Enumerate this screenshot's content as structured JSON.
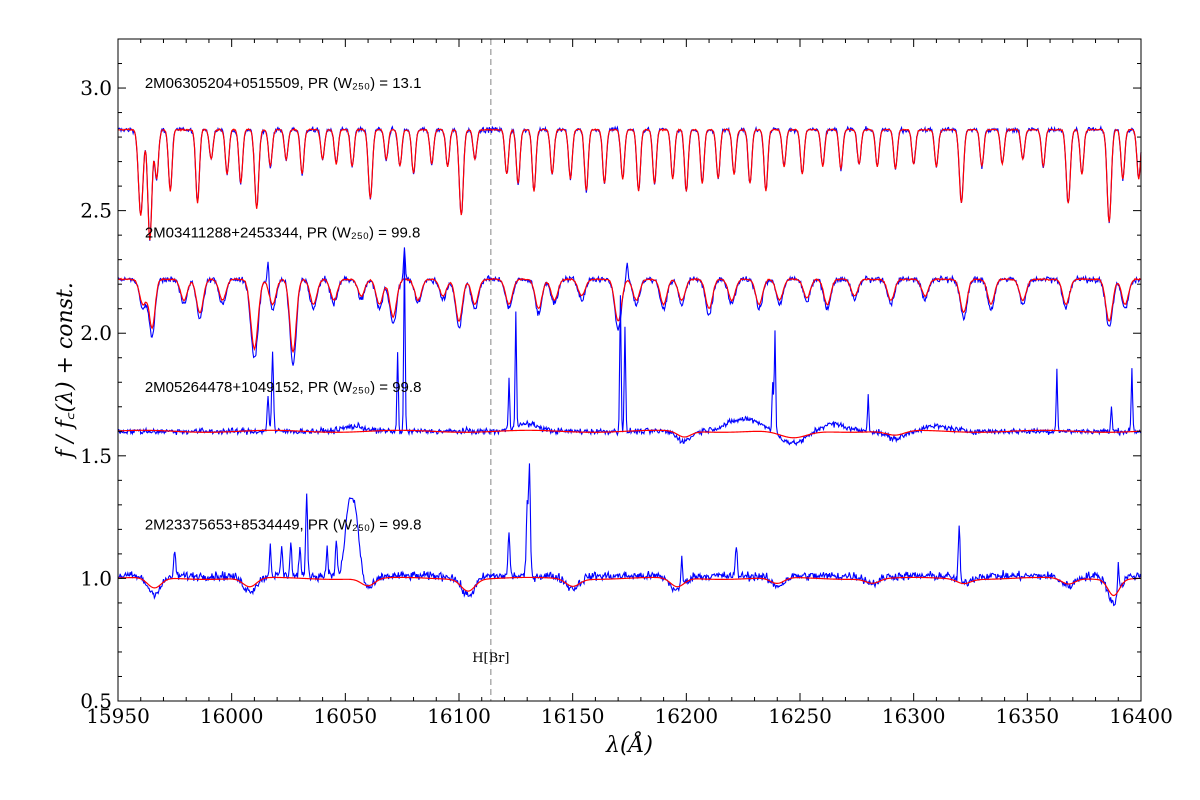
{
  "chart_data": {
    "type": "line",
    "xlabel": "λ(Å)",
    "ylabel": "f / f꜀(λ) + const.",
    "xlim": [
      15950,
      16400
    ],
    "ylim": [
      0.5,
      3.2
    ],
    "xticks": [
      15950,
      16000,
      16050,
      16100,
      16150,
      16200,
      16250,
      16300,
      16350,
      16400
    ],
    "yticks": [
      0.5,
      1.0,
      1.5,
      2.0,
      2.5,
      3.0
    ],
    "xtick_labels": [
      "15950",
      "16000",
      "16050",
      "16100",
      "16150",
      "16200",
      "16250",
      "16300",
      "16350",
      "16400"
    ],
    "ytick_labels": [
      "0.5",
      "1.0",
      "1.5",
      "2.0",
      "2.5",
      "3.0"
    ],
    "grid": false,
    "colors": {
      "data": "#0000ff",
      "model": "#ff0000",
      "reference_line": "#999999"
    },
    "reference_line": {
      "x": 16114,
      "label": "H[Br]",
      "label_y": 0.68
    },
    "spectra": [
      {
        "label": "2M06305204+0515509, PR (W₂₅₀) = 13.1",
        "label_position": {
          "x": 15953,
          "y": 3.02
        },
        "continuum": 2.83,
        "model_continuum": 2.83,
        "data_noise": 0.01,
        "model_smooth": false,
        "absorption_lines": [
          [
            15960,
            0.35,
            1.0
          ],
          [
            15964,
            0.45,
            0.9
          ],
          [
            15967,
            0.2,
            0.8
          ],
          [
            15973,
            0.25,
            0.8
          ],
          [
            15985,
            0.3,
            0.8
          ],
          [
            15991,
            0.12,
            0.8
          ],
          [
            15998,
            0.18,
            0.8
          ],
          [
            16004,
            0.22,
            0.8
          ],
          [
            16011,
            0.32,
            0.9
          ],
          [
            16017,
            0.15,
            0.8
          ],
          [
            16024,
            0.12,
            0.8
          ],
          [
            16031,
            0.18,
            0.8
          ],
          [
            16040,
            0.12,
            0.8
          ],
          [
            16046,
            0.14,
            0.8
          ],
          [
            16053,
            0.15,
            0.8
          ],
          [
            16061,
            0.28,
            0.9
          ],
          [
            16068,
            0.12,
            0.8
          ],
          [
            16074,
            0.15,
            0.8
          ],
          [
            16080,
            0.18,
            0.8
          ],
          [
            16088,
            0.14,
            0.8
          ],
          [
            16095,
            0.15,
            0.8
          ],
          [
            16101,
            0.35,
            0.9
          ],
          [
            16107,
            0.12,
            0.8
          ],
          [
            16121,
            0.18,
            0.8
          ],
          [
            16126,
            0.22,
            0.8
          ],
          [
            16133,
            0.25,
            0.8
          ],
          [
            16141,
            0.18,
            0.8
          ],
          [
            16149,
            0.2,
            0.8
          ],
          [
            16156,
            0.25,
            0.8
          ],
          [
            16164,
            0.22,
            0.8
          ],
          [
            16172,
            0.2,
            0.8
          ],
          [
            16179,
            0.25,
            0.8
          ],
          [
            16186,
            0.22,
            0.8
          ],
          [
            16194,
            0.2,
            0.8
          ],
          [
            16200,
            0.25,
            0.8
          ],
          [
            16207,
            0.22,
            0.8
          ],
          [
            16214,
            0.2,
            0.8
          ],
          [
            16221,
            0.18,
            0.8
          ],
          [
            16228,
            0.22,
            0.8
          ],
          [
            16235,
            0.25,
            0.8
          ],
          [
            16243,
            0.15,
            0.8
          ],
          [
            16251,
            0.18,
            0.8
          ],
          [
            16260,
            0.15,
            0.8
          ],
          [
            16268,
            0.16,
            0.8
          ],
          [
            16276,
            0.14,
            0.8
          ],
          [
            16284,
            0.15,
            0.8
          ],
          [
            16292,
            0.16,
            0.8
          ],
          [
            16300,
            0.14,
            0.8
          ],
          [
            16310,
            0.15,
            0.8
          ],
          [
            16321,
            0.3,
            0.9
          ],
          [
            16330,
            0.15,
            0.8
          ],
          [
            16339,
            0.14,
            0.8
          ],
          [
            16348,
            0.12,
            0.8
          ],
          [
            16357,
            0.15,
            0.8
          ],
          [
            16368,
            0.3,
            0.9
          ],
          [
            16374,
            0.18,
            0.8
          ],
          [
            16386,
            0.38,
            0.9
          ],
          [
            16392,
            0.2,
            0.8
          ],
          [
            16399,
            0.2,
            0.8
          ]
        ],
        "emission_lines": []
      },
      {
        "label": "2M03411288+2453344, PR (W₂₅₀) = 99.8",
        "label_position": {
          "x": 15953,
          "y": 2.41
        },
        "continuum": 2.22,
        "model_continuum": 2.22,
        "data_noise": 0.012,
        "model_smooth": false,
        "absorption_lines": [
          [
            15961,
            0.12,
            1.5
          ],
          [
            15965,
            0.23,
            1.3
          ],
          [
            15979,
            0.1,
            1.5
          ],
          [
            15986,
            0.16,
            1.5
          ],
          [
            15996,
            0.1,
            1.5
          ],
          [
            16010,
            0.33,
            1.6
          ],
          [
            16018,
            0.12,
            1.5
          ],
          [
            16027,
            0.35,
            1.4
          ],
          [
            16036,
            0.12,
            1.5
          ],
          [
            16045,
            0.1,
            1.5
          ],
          [
            16057,
            0.08,
            1.5
          ],
          [
            16065,
            0.12,
            1.5
          ],
          [
            16071,
            0.18,
            1.5
          ],
          [
            16082,
            0.1,
            1.5
          ],
          [
            16093,
            0.08,
            1.5
          ],
          [
            16100,
            0.2,
            1.5
          ],
          [
            16107,
            0.12,
            1.5
          ],
          [
            16122,
            0.12,
            1.5
          ],
          [
            16135,
            0.14,
            1.5
          ],
          [
            16142,
            0.1,
            1.5
          ],
          [
            16154,
            0.08,
            1.5
          ],
          [
            16170,
            0.2,
            1.5
          ],
          [
            16178,
            0.1,
            1.5
          ],
          [
            16190,
            0.12,
            1.5
          ],
          [
            16198,
            0.1,
            1.5
          ],
          [
            16210,
            0.14,
            1.5
          ],
          [
            16220,
            0.1,
            1.5
          ],
          [
            16232,
            0.12,
            1.5
          ],
          [
            16241,
            0.1,
            1.5
          ],
          [
            16253,
            0.09,
            1.5
          ],
          [
            16262,
            0.12,
            1.5
          ],
          [
            16274,
            0.08,
            1.5
          ],
          [
            16290,
            0.1,
            1.5
          ],
          [
            16305,
            0.08,
            1.5
          ],
          [
            16322,
            0.16,
            1.5
          ],
          [
            16334,
            0.12,
            1.5
          ],
          [
            16348,
            0.1,
            1.5
          ],
          [
            16367,
            0.12,
            1.5
          ],
          [
            16386,
            0.2,
            1.5
          ],
          [
            16393,
            0.12,
            1.5
          ]
        ],
        "emission_lines": [
          [
            16016,
            0.12,
            0.4
          ],
          [
            16076,
            0.12,
            0.4
          ],
          [
            16174,
            0.08,
            0.4
          ]
        ]
      },
      {
        "label": "2M05264478+1049152, PR (W₂₅₀) = 99.8",
        "label_position": {
          "x": 15953,
          "y": 1.78
        },
        "continuum": 1.6,
        "model_continuum": 1.6,
        "data_noise": 0.012,
        "model_smooth": true,
        "absorption_lines": [
          [
            16199,
            0.04,
            3.0
          ],
          [
            16247,
            0.05,
            6.0
          ],
          [
            16292,
            0.03,
            4.0
          ]
        ],
        "emission_lines": [
          [
            16016,
            0.14,
            0.4
          ],
          [
            16018,
            0.32,
            0.4
          ],
          [
            16076,
            0.73,
            0.3
          ],
          [
            16073,
            0.32,
            0.3
          ],
          [
            16125,
            0.48,
            0.3
          ],
          [
            16122,
            0.2,
            0.3
          ],
          [
            16171,
            0.56,
            0.3
          ],
          [
            16173,
            0.42,
            0.3
          ],
          [
            16239,
            0.42,
            0.3
          ],
          [
            16238,
            0.2,
            0.3
          ],
          [
            16280,
            0.15,
            0.3
          ],
          [
            16363,
            0.25,
            0.3
          ],
          [
            16387,
            0.1,
            0.3
          ],
          [
            16396,
            0.26,
            0.3
          ],
          [
            16226,
            0.05,
            8.0
          ],
          [
            16264,
            0.03,
            6.0
          ],
          [
            16310,
            0.02,
            6.0
          ],
          [
            16130,
            0.03,
            5.0
          ],
          [
            16054,
            0.02,
            5.0
          ]
        ]
      },
      {
        "label": "2M23375653+8534449, PR (W₂₅₀) = 99.8",
        "label_position": {
          "x": 15953,
          "y": 1.22
        },
        "continuum": 1.01,
        "model_continuum": 1.0,
        "data_noise": 0.018,
        "model_smooth": true,
        "absorption_lines": [
          [
            15966,
            0.07,
            3.0
          ],
          [
            16008,
            0.06,
            3.0
          ],
          [
            16060,
            0.05,
            3.0
          ],
          [
            16104,
            0.08,
            3.0
          ],
          [
            16150,
            0.05,
            3.0
          ],
          [
            16196,
            0.06,
            3.0
          ],
          [
            16240,
            0.04,
            3.0
          ],
          [
            16282,
            0.03,
            3.0
          ],
          [
            16322,
            0.03,
            3.0
          ],
          [
            16368,
            0.04,
            3.0
          ],
          [
            16388,
            0.11,
            2.5
          ]
        ],
        "emission_lines": [
          [
            16033,
            0.33,
            0.4
          ],
          [
            16054,
            0.28,
            2.0
          ],
          [
            16051,
            0.18,
            1.5
          ],
          [
            16130,
            0.28,
            0.4
          ],
          [
            16131,
            0.43,
            0.4
          ],
          [
            16017,
            0.12,
            0.4
          ],
          [
            16022,
            0.12,
            0.4
          ],
          [
            16026,
            0.14,
            0.4
          ],
          [
            16030,
            0.12,
            0.4
          ],
          [
            16042,
            0.12,
            0.4
          ],
          [
            16046,
            0.15,
            0.4
          ],
          [
            16122,
            0.18,
            0.4
          ],
          [
            16198,
            0.12,
            0.4
          ],
          [
            16222,
            0.12,
            0.4
          ],
          [
            16320,
            0.22,
            0.4
          ],
          [
            16390,
            0.12,
            0.4
          ],
          [
            15975,
            0.1,
            0.4
          ]
        ]
      }
    ]
  }
}
